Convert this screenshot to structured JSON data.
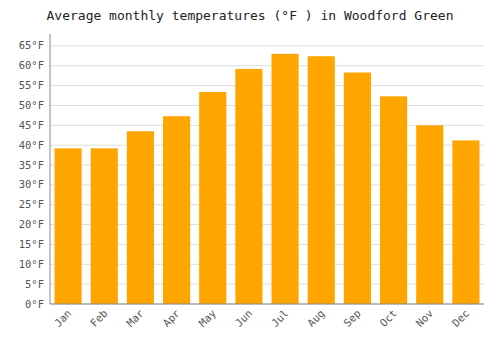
{
  "chart_data": {
    "type": "bar",
    "title": "Average monthly temperatures (°F ) in Woodford Green",
    "categories": [
      "Jan",
      "Feb",
      "Mar",
      "Apr",
      "May",
      "Jun",
      "Jul",
      "Aug",
      "Sep",
      "Oct",
      "Nov",
      "Dec"
    ],
    "values": [
      39.2,
      39.2,
      43.5,
      47.3,
      53.4,
      59.2,
      63.0,
      62.4,
      58.3,
      52.3,
      45.0,
      41.2
    ],
    "color": "#FFA500",
    "ylim": [
      0,
      68
    ],
    "yticks": [
      {
        "value": 0,
        "label": "0°F"
      },
      {
        "value": 5,
        "label": "5°F"
      },
      {
        "value": 10,
        "label": "10°F"
      },
      {
        "value": 15,
        "label": "15°F"
      },
      {
        "value": 20,
        "label": "20°F"
      },
      {
        "value": 25,
        "label": "25°F"
      },
      {
        "value": 30,
        "label": "30°F"
      },
      {
        "value": 35,
        "label": "35°F"
      },
      {
        "value": 40,
        "label": "40°F"
      },
      {
        "value": 45,
        "label": "45°F"
      },
      {
        "value": 50,
        "label": "50°F"
      },
      {
        "value": 55,
        "label": "55°F"
      },
      {
        "value": 60,
        "label": "60°F"
      },
      {
        "value": 65,
        "label": "65°F"
      }
    ],
    "grid": true
  }
}
